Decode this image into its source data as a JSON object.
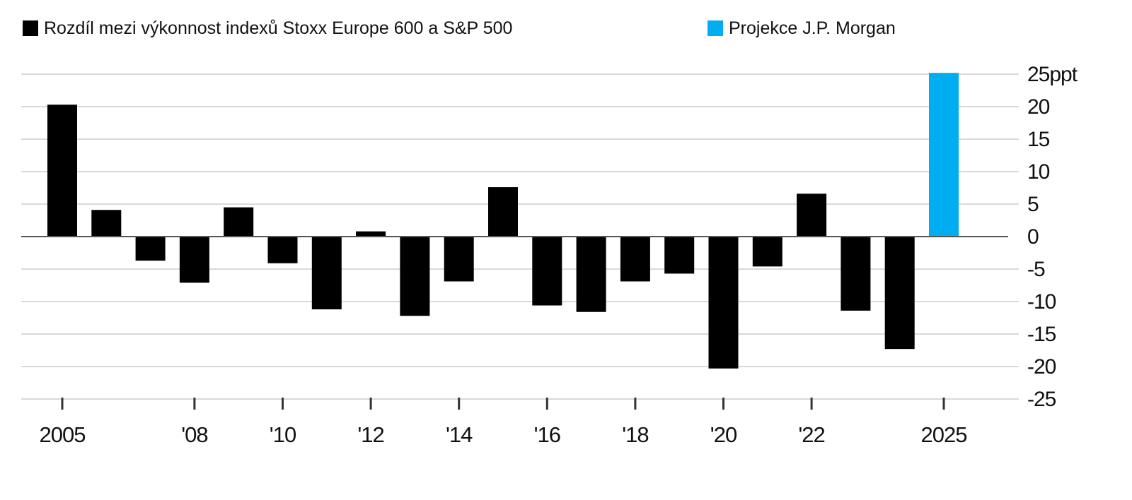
{
  "legend": [
    {
      "label": "Rozdíl mezi výkonnost indexů Stoxx Europe 600 a S&P 500",
      "color": "#000000"
    },
    {
      "label": "Projekce J.P. Morgan",
      "color": "#00adf1"
    }
  ],
  "chart_data": {
    "type": "bar",
    "title": "",
    "xlabel": "",
    "ylabel": "",
    "ylim": [
      -25,
      25
    ],
    "y_ticks": [
      25,
      20,
      15,
      10,
      5,
      0,
      -5,
      -10,
      -15,
      -20,
      -25
    ],
    "y_tick_labels": [
      "25ppt",
      "20",
      "15",
      "10",
      "5",
      "0",
      "-5",
      "-10",
      "-15",
      "-20",
      "-25"
    ],
    "x_tick_labels": [
      {
        "year": 2005,
        "label": "2005"
      },
      {
        "year": 2008,
        "label": "'08"
      },
      {
        "year": 2010,
        "label": "'10"
      },
      {
        "year": 2012,
        "label": "'12"
      },
      {
        "year": 2014,
        "label": "'14"
      },
      {
        "year": 2016,
        "label": "'16"
      },
      {
        "year": 2018,
        "label": "'18"
      },
      {
        "year": 2020,
        "label": "'20"
      },
      {
        "year": 2022,
        "label": "'22"
      },
      {
        "year": 2025,
        "label": "2025"
      }
    ],
    "series": [
      {
        "name": "Rozdíl mezi výkonnost indexů Stoxx Europe 600 a S&P 500",
        "color": "#000000",
        "points": [
          {
            "year": 2005,
            "value": 20.3
          },
          {
            "year": 2006,
            "value": 4.1
          },
          {
            "year": 2007,
            "value": -3.7
          },
          {
            "year": 2008,
            "value": -7.1
          },
          {
            "year": 2009,
            "value": 4.5
          },
          {
            "year": 2010,
            "value": -4.1
          },
          {
            "year": 2011,
            "value": -11.2
          },
          {
            "year": 2012,
            "value": 0.8
          },
          {
            "year": 2013,
            "value": -12.2
          },
          {
            "year": 2014,
            "value": -6.9
          },
          {
            "year": 2015,
            "value": 7.6
          },
          {
            "year": 2016,
            "value": -10.6
          },
          {
            "year": 2017,
            "value": -11.6
          },
          {
            "year": 2018,
            "value": -6.9
          },
          {
            "year": 2019,
            "value": -5.7
          },
          {
            "year": 2020,
            "value": -20.3
          },
          {
            "year": 2021,
            "value": -4.6
          },
          {
            "year": 2022,
            "value": 6.6
          },
          {
            "year": 2023,
            "value": -11.4
          },
          {
            "year": 2024,
            "value": -17.3
          }
        ]
      },
      {
        "name": "Projekce J.P. Morgan",
        "color": "#00adf1",
        "points": [
          {
            "year": 2025,
            "value": 25.2
          }
        ]
      }
    ]
  }
}
